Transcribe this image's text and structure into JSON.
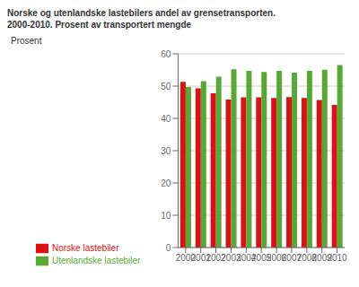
{
  "chart_data": {
    "type": "bar",
    "title": "Norske og utenlandske lastebilers andel av grensetransporten.",
    "subtitle": "2000-2010. Prosent av transportert mengde",
    "ylabel": "Prosent",
    "categories": [
      "2000",
      "2001",
      "2002",
      "2003",
      "2004",
      "2005",
      "2006",
      "2007",
      "2008",
      "2009",
      "2010"
    ],
    "series": [
      {
        "name": "Norske lastebiler",
        "color": "#dd1111",
        "values": [
          51.3,
          49.3,
          47.8,
          45.8,
          46.5,
          46.5,
          46.3,
          46.6,
          46.3,
          45.7,
          44.2
        ]
      },
      {
        "name": "Utenlandske lastebiler",
        "color": "#55aa33",
        "values": [
          49.7,
          51.5,
          52.9,
          55.2,
          54.7,
          54.4,
          54.7,
          54.2,
          54.7,
          55.1,
          56.5
        ]
      }
    ],
    "ylim": [
      0,
      60
    ],
    "yticks": [
      0,
      10,
      20,
      30,
      40,
      50,
      60
    ],
    "grid": true,
    "legend": "bottom"
  }
}
